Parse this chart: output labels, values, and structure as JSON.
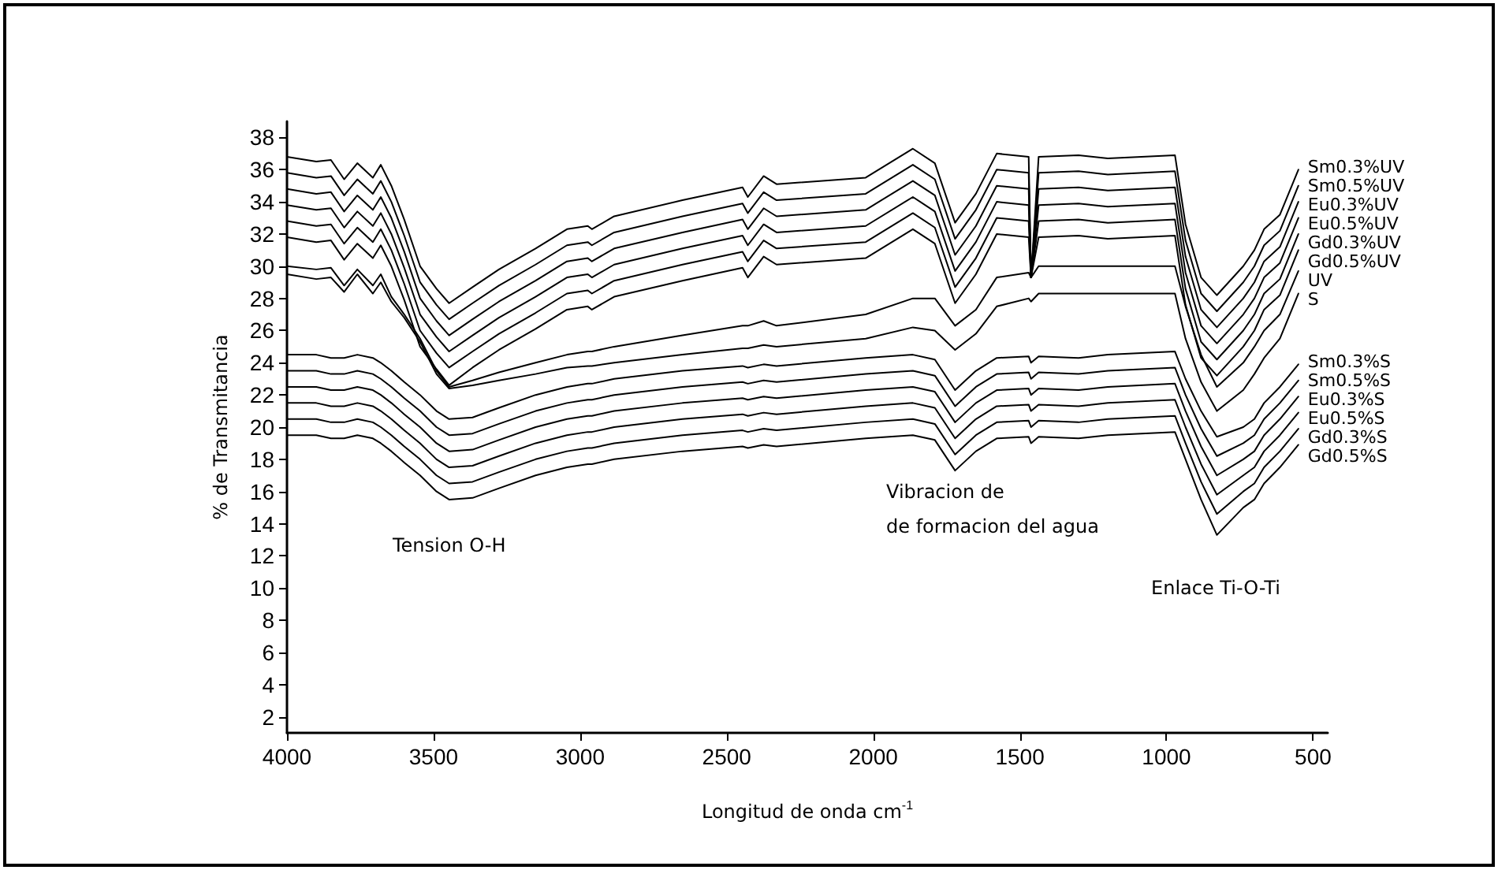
{
  "chart_data": {
    "type": "line",
    "xlabel": "Longitud de onda cm$^{-1}$",
    "ylabel": "% de Transmitancia",
    "x": [
      4000,
      3900,
      3850,
      3805,
      3760,
      3707,
      3680,
      3644,
      3600,
      3546,
      3490,
      3447,
      3367,
      3277,
      3152,
      3045,
      2974,
      2960,
      2884,
      2651,
      2446,
      2428,
      2374,
      2330,
      2026,
      1865,
      1790,
      1721,
      1650,
      1579,
      1470,
      1462,
      1436,
      1300,
      1200,
      971,
      935,
      882,
      828,
      738,
      700,
      667,
      613,
      550
    ],
    "xlim": [
      4000,
      450
    ],
    "xticks": [
      4000,
      3500,
      3000,
      2500,
      2000,
      1500,
      1000,
      500
    ],
    "ylim": [
      1,
      39
    ],
    "yticks": [
      2,
      4,
      6,
      8,
      10,
      12,
      14,
      16,
      18,
      20,
      22,
      24,
      26,
      28,
      30,
      32,
      34,
      36,
      38
    ],
    "grid": false,
    "annotations": [
      "Tension O-H",
      "Vibracion de\nde formacion del agua",
      "Enlace Ti-O-Ti"
    ],
    "series": [
      {
        "name": "Sm0.3%UV",
        "color": "#000000",
        "values": [
          36.8,
          36.5,
          36.6,
          35.4,
          36.4,
          35.5,
          36.3,
          35.0,
          32.9,
          30.0,
          28.6,
          27.7,
          28.7,
          29.8,
          31.1,
          32.3,
          32.5,
          32.3,
          33.1,
          34.1,
          34.9,
          34.3,
          35.6,
          35.1,
          35.5,
          37.3,
          36.4,
          32.7,
          34.5,
          37.0,
          36.8,
          29.3,
          36.8,
          36.9,
          36.7,
          36.9,
          32.6,
          29.3,
          28.2,
          30.0,
          31.0,
          32.3,
          33.2,
          36.0
        ]
      },
      {
        "name": "Sm0.5%UV",
        "color": "#000000",
        "values": [
          35.8,
          35.5,
          35.6,
          34.4,
          35.4,
          34.5,
          35.3,
          34.0,
          31.9,
          29.0,
          27.6,
          26.7,
          27.7,
          28.8,
          30.1,
          31.3,
          31.5,
          31.3,
          32.1,
          33.1,
          33.9,
          33.3,
          34.6,
          34.1,
          34.5,
          36.3,
          35.4,
          31.7,
          33.5,
          36.0,
          35.8,
          29.3,
          35.8,
          35.9,
          35.7,
          35.9,
          31.6,
          28.3,
          27.2,
          29.0,
          30.0,
          31.3,
          32.2,
          35.0
        ]
      },
      {
        "name": "Eu0.3%UV",
        "color": "#000000",
        "values": [
          34.8,
          34.5,
          34.6,
          33.4,
          34.4,
          33.5,
          34.3,
          33.0,
          30.9,
          28.0,
          26.6,
          25.7,
          26.7,
          27.8,
          29.1,
          30.3,
          30.5,
          30.3,
          31.1,
          32.1,
          32.9,
          32.3,
          33.6,
          33.1,
          33.5,
          35.3,
          34.4,
          30.7,
          32.5,
          35.0,
          34.8,
          29.3,
          34.8,
          34.9,
          34.7,
          34.9,
          30.6,
          27.3,
          26.2,
          28.0,
          29.0,
          30.3,
          31.2,
          34.0
        ]
      },
      {
        "name": "Eu0.5%UV",
        "color": "#000000",
        "values": [
          33.8,
          33.5,
          33.6,
          32.4,
          33.4,
          32.5,
          33.3,
          32.0,
          29.9,
          27.0,
          25.6,
          24.7,
          25.7,
          26.8,
          28.1,
          29.3,
          29.5,
          29.3,
          30.1,
          31.1,
          31.9,
          31.3,
          32.6,
          32.1,
          32.5,
          34.3,
          33.4,
          29.7,
          31.5,
          34.0,
          33.8,
          29.3,
          33.8,
          33.9,
          33.7,
          33.9,
          29.6,
          26.3,
          25.2,
          27.0,
          28.0,
          29.3,
          30.2,
          33.0
        ]
      },
      {
        "name": "Gd0.3%UV",
        "color": "#000000",
        "values": [
          32.8,
          32.5,
          32.6,
          31.4,
          32.4,
          31.5,
          32.3,
          31.0,
          28.9,
          26.0,
          24.6,
          23.7,
          24.7,
          25.8,
          27.1,
          28.3,
          28.5,
          28.3,
          29.1,
          30.1,
          30.9,
          30.3,
          31.6,
          31.1,
          31.5,
          33.3,
          32.4,
          28.7,
          30.5,
          33.0,
          32.8,
          29.3,
          32.8,
          32.9,
          32.7,
          32.9,
          28.6,
          25.3,
          24.2,
          26.0,
          27.0,
          28.3,
          29.2,
          32.0
        ]
      },
      {
        "name": "Gd0.5%UV",
        "color": "#000000",
        "values": [
          31.8,
          31.5,
          31.6,
          30.4,
          31.4,
          30.5,
          31.3,
          30.0,
          27.9,
          25.0,
          23.6,
          22.6,
          23.7,
          24.8,
          26.1,
          27.3,
          27.5,
          27.3,
          28.1,
          29.1,
          29.9,
          29.3,
          30.6,
          30.1,
          30.5,
          32.3,
          31.4,
          27.7,
          29.5,
          32.0,
          31.8,
          29.3,
          31.8,
          31.9,
          31.7,
          31.9,
          27.6,
          24.3,
          23.2,
          25.0,
          26.0,
          27.3,
          28.2,
          31.0
        ]
      },
      {
        "name": "UV",
        "color": "#000000",
        "values": [
          30.0,
          29.8,
          29.9,
          28.8,
          29.8,
          28.8,
          29.5,
          28.1,
          27.0,
          25.5,
          23.5,
          22.5,
          22.9,
          23.4,
          24.0,
          24.5,
          24.7,
          24.7,
          25.0,
          25.7,
          26.3,
          26.3,
          26.6,
          26.3,
          27.0,
          28.0,
          28.0,
          26.3,
          27.3,
          29.3,
          29.6,
          29.3,
          30.0,
          30.0,
          30.0,
          30.0,
          27.5,
          24.5,
          22.5,
          24.0,
          25.0,
          26.0,
          27.0,
          29.7
        ]
      },
      {
        "name": "S",
        "color": "#000000",
        "values": [
          29.5,
          29.2,
          29.3,
          28.4,
          29.5,
          28.3,
          29.0,
          27.8,
          26.8,
          25.3,
          23.3,
          22.4,
          22.6,
          22.9,
          23.3,
          23.7,
          23.8,
          23.8,
          24.0,
          24.5,
          24.9,
          24.9,
          25.1,
          25.0,
          25.5,
          26.2,
          26.0,
          24.8,
          25.8,
          27.5,
          28.0,
          27.8,
          28.3,
          28.3,
          28.3,
          28.3,
          25.5,
          22.8,
          21.0,
          22.3,
          23.3,
          24.3,
          25.5,
          28.3
        ]
      },
      {
        "name": "Sm0.3%S",
        "color": "#000000",
        "values": [
          24.5,
          24.5,
          24.3,
          24.3,
          24.5,
          24.3,
          24.0,
          23.5,
          22.8,
          22.0,
          21.0,
          20.5,
          20.6,
          21.2,
          22.0,
          22.5,
          22.7,
          22.7,
          23.0,
          23.5,
          23.8,
          23.7,
          23.9,
          23.8,
          24.3,
          24.5,
          24.2,
          22.3,
          23.5,
          24.3,
          24.4,
          24.0,
          24.4,
          24.3,
          24.5,
          24.7,
          23.0,
          21.0,
          19.4,
          20.0,
          20.5,
          21.5,
          22.5,
          23.9
        ]
      },
      {
        "name": "Sm0.5%S",
        "color": "#000000",
        "values": [
          23.5,
          23.5,
          23.3,
          23.3,
          23.5,
          23.3,
          23.0,
          22.5,
          21.8,
          21.0,
          20.0,
          19.5,
          19.6,
          20.2,
          21.0,
          21.5,
          21.7,
          21.7,
          22.0,
          22.5,
          22.8,
          22.7,
          22.9,
          22.8,
          23.3,
          23.5,
          23.2,
          21.3,
          22.5,
          23.3,
          23.4,
          23.0,
          23.4,
          23.3,
          23.5,
          23.7,
          22.0,
          19.9,
          18.2,
          19.0,
          19.5,
          20.5,
          21.5,
          22.9
        ]
      },
      {
        "name": "Eu0.3%S",
        "color": "#000000",
        "values": [
          22.5,
          22.5,
          22.3,
          22.3,
          22.5,
          22.3,
          22.0,
          21.5,
          20.8,
          20.0,
          19.0,
          18.5,
          18.6,
          19.2,
          20.0,
          20.5,
          20.7,
          20.7,
          21.0,
          21.5,
          21.8,
          21.7,
          21.9,
          21.8,
          22.3,
          22.5,
          22.2,
          20.3,
          21.5,
          22.3,
          22.4,
          22.0,
          22.4,
          22.3,
          22.5,
          22.7,
          21.0,
          18.8,
          17.0,
          18.0,
          18.5,
          19.5,
          20.5,
          21.9
        ]
      },
      {
        "name": "Eu0.5%S",
        "color": "#000000",
        "values": [
          21.5,
          21.5,
          21.3,
          21.3,
          21.5,
          21.3,
          21.0,
          20.5,
          19.8,
          19.0,
          18.0,
          17.5,
          17.6,
          18.2,
          19.0,
          19.5,
          19.7,
          19.7,
          20.0,
          20.5,
          20.8,
          20.7,
          20.9,
          20.8,
          21.3,
          21.5,
          21.2,
          19.3,
          20.5,
          21.3,
          21.4,
          21.0,
          21.4,
          21.3,
          21.5,
          21.7,
          20.0,
          17.7,
          15.8,
          17.0,
          17.5,
          18.5,
          19.5,
          20.9
        ]
      },
      {
        "name": "Gd0.3%S",
        "color": "#000000",
        "values": [
          20.5,
          20.5,
          20.3,
          20.3,
          20.5,
          20.3,
          20.0,
          19.5,
          18.8,
          18.0,
          17.0,
          16.5,
          16.6,
          17.2,
          18.0,
          18.5,
          18.7,
          18.7,
          19.0,
          19.5,
          19.8,
          19.7,
          19.9,
          19.8,
          20.3,
          20.5,
          20.2,
          18.3,
          19.5,
          20.3,
          20.4,
          20.0,
          20.4,
          20.3,
          20.5,
          20.7,
          19.0,
          16.6,
          14.6,
          16.0,
          16.5,
          17.5,
          18.5,
          19.9
        ]
      },
      {
        "name": "Gd0.5%S",
        "color": "#000000",
        "values": [
          19.5,
          19.5,
          19.3,
          19.3,
          19.5,
          19.3,
          19.0,
          18.5,
          17.8,
          17.0,
          16.0,
          15.5,
          15.6,
          16.2,
          17.0,
          17.5,
          17.7,
          17.7,
          18.0,
          18.5,
          18.8,
          18.7,
          18.9,
          18.8,
          19.3,
          19.5,
          19.2,
          17.3,
          18.5,
          19.3,
          19.4,
          19.0,
          19.4,
          19.3,
          19.5,
          19.7,
          18.0,
          15.5,
          13.3,
          15.0,
          15.5,
          16.5,
          17.5,
          18.9
        ]
      }
    ]
  }
}
